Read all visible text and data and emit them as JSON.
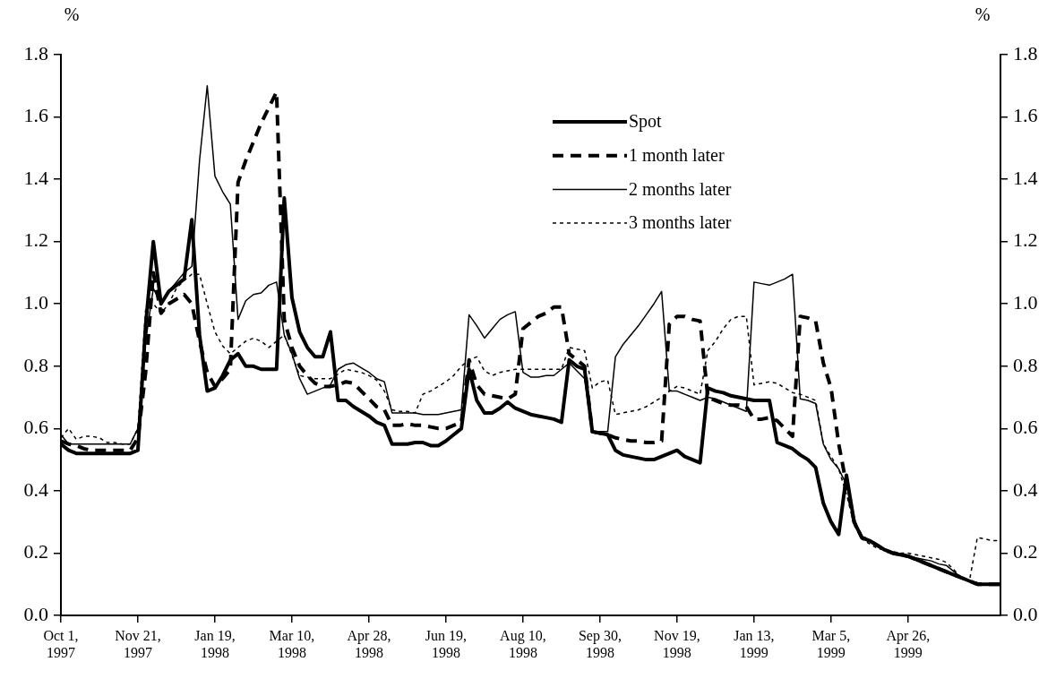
{
  "chart_data": {
    "type": "line",
    "ylabel": "%",
    "y2label": "%",
    "categories": [
      "Oct 1, 1997",
      null,
      null,
      null,
      null,
      null,
      null,
      null,
      null,
      null,
      "Nov 21, 1997",
      null,
      null,
      null,
      null,
      null,
      null,
      null,
      null,
      null,
      "Jan 19, 1998",
      null,
      null,
      null,
      null,
      null,
      null,
      null,
      null,
      null,
      "Mar 10, 1998",
      null,
      null,
      null,
      null,
      null,
      null,
      null,
      null,
      null,
      "Apr 28, 1998",
      null,
      null,
      null,
      null,
      null,
      null,
      null,
      null,
      null,
      "Jun 19, 1998",
      null,
      null,
      null,
      null,
      null,
      null,
      null,
      null,
      null,
      "Aug 10, 1998",
      null,
      null,
      null,
      null,
      null,
      null,
      null,
      null,
      null,
      "Sep 30, 1998",
      null,
      null,
      null,
      null,
      null,
      null,
      null,
      null,
      null,
      "Nov 19, 1998",
      null,
      null,
      null,
      null,
      null,
      null,
      null,
      null,
      null,
      "Jan 13, 1999",
      null,
      null,
      null,
      null,
      null,
      null,
      null,
      null,
      null,
      "Mar 5, 1999",
      null,
      null,
      null,
      null,
      null,
      null,
      null,
      null,
      null,
      "Apr 26, 1999",
      null,
      null,
      null,
      null,
      null,
      null,
      null,
      null,
      null,
      null,
      null,
      null
    ],
    "ylim": [
      0,
      1.8
    ],
    "yticks": [
      {
        "value": 0,
        "label": "0.0"
      },
      {
        "value": 0.2,
        "label": "0.2"
      },
      {
        "value": 0.4,
        "label": "0.4"
      },
      {
        "value": 0.6,
        "label": "0.6"
      },
      {
        "value": 0.8,
        "label": "0.8"
      },
      {
        "value": 1,
        "label": "1.0"
      },
      {
        "value": 1.2,
        "label": "1.2"
      },
      {
        "value": 1.4,
        "label": "1.4"
      },
      {
        "value": 1.6,
        "label": "1.6"
      },
      {
        "value": 1.8,
        "label": "1.8"
      }
    ],
    "y2lim": [
      0,
      1.8
    ],
    "y2ticks": [
      {
        "value": 0,
        "label": "0.0"
      },
      {
        "value": 0.2,
        "label": "0.2"
      },
      {
        "value": 0.4,
        "label": "0.4"
      },
      {
        "value": 0.6,
        "label": "0.6"
      },
      {
        "value": 0.8,
        "label": "0.8"
      },
      {
        "value": 1,
        "label": "1.0"
      },
      {
        "value": 1.2,
        "label": "1.2"
      },
      {
        "value": 1.4,
        "label": "1.4"
      },
      {
        "value": 1.6,
        "label": "1.6"
      },
      {
        "value": 1.8,
        "label": "1.8"
      }
    ],
    "grid": false,
    "legend": "top right",
    "series": [
      {
        "name": "Spot",
        "color": "#000000",
        "line_style": "solid",
        "values": [
          0.55,
          0.53,
          0.52,
          0.52,
          0.52,
          0.52,
          0.52,
          0.52,
          0.52,
          0.52,
          0.53,
          0.93,
          1.2,
          1.0,
          1.04,
          1.06,
          1.08,
          1.27,
          0.9,
          0.72,
          0.73,
          0.77,
          0.82,
          0.84,
          0.8,
          0.8,
          0.79,
          0.79,
          0.79,
          1.34,
          1.02,
          0.91,
          0.86,
          0.83,
          0.83,
          0.91,
          0.69,
          0.69,
          0.67,
          0.655,
          0.64,
          0.62,
          0.61,
          0.55,
          0.55,
          0.55,
          0.555,
          0.555,
          0.545,
          0.545,
          0.56,
          0.58,
          0.6,
          0.79,
          0.69,
          0.65,
          0.65,
          0.665,
          0.685,
          0.665,
          0.655,
          0.645,
          0.64,
          0.635,
          0.63,
          0.62,
          0.82,
          0.8,
          0.79,
          0.59,
          0.585,
          0.58,
          0.53,
          0.515,
          0.51,
          0.505,
          0.5,
          0.5,
          0.51,
          0.52,
          0.53,
          0.51,
          0.5,
          0.49,
          0.73,
          0.72,
          0.715,
          0.705,
          0.7,
          0.695,
          0.69,
          0.69,
          0.69,
          0.555,
          0.545,
          0.535,
          0.515,
          0.5,
          0.475,
          0.36,
          0.3,
          0.26,
          0.45,
          0.3,
          0.25,
          0.24,
          0.225,
          0.21,
          0.2,
          0.195,
          0.19,
          0.18,
          0.17,
          0.16,
          0.15,
          0.14,
          0.13,
          0.12,
          0.11,
          0.1,
          0.1,
          0.1,
          0.1
        ]
      },
      {
        "name": "1 month later",
        "color": "#000000",
        "line_style": "dashed",
        "values": [
          0.56,
          0.55,
          0.545,
          0.535,
          0.53,
          0.53,
          0.53,
          0.53,
          0.53,
          0.53,
          0.57,
          0.78,
          1.1,
          0.97,
          1.0,
          1.015,
          1.03,
          1.0,
          0.88,
          0.78,
          0.735,
          0.76,
          0.79,
          1.39,
          1.46,
          1.52,
          1.58,
          1.63,
          1.68,
          0.95,
          0.86,
          0.8,
          0.77,
          0.745,
          0.735,
          0.735,
          0.74,
          0.75,
          0.745,
          0.72,
          0.695,
          0.67,
          0.66,
          0.61,
          0.61,
          0.615,
          0.61,
          0.61,
          0.605,
          0.6,
          0.6,
          0.61,
          0.62,
          0.82,
          0.74,
          0.71,
          0.705,
          0.7,
          0.695,
          0.71,
          0.92,
          0.94,
          0.96,
          0.97,
          0.99,
          0.99,
          0.84,
          0.82,
          0.8,
          0.59,
          0.585,
          0.58,
          0.57,
          0.565,
          0.56,
          0.56,
          0.555,
          0.555,
          0.56,
          0.935,
          0.96,
          0.96,
          0.95,
          0.945,
          0.7,
          0.69,
          0.68,
          0.675,
          0.675,
          0.67,
          0.63,
          0.63,
          0.635,
          0.625,
          0.6,
          0.575,
          0.96,
          0.955,
          0.945,
          0.81,
          0.73,
          0.55,
          0.42,
          0.3,
          0.25,
          0.24,
          0.225,
          0.21,
          0.2,
          0.195,
          0.19,
          0.18,
          0.17,
          0.16,
          0.15,
          0.14,
          0.13,
          0.12,
          0.11,
          0.1,
          0.1,
          0.1,
          0.1
        ]
      },
      {
        "name": "2 months later",
        "color": "#000000",
        "line_style": "solid",
        "values": [
          0.58,
          0.55,
          0.55,
          0.55,
          0.55,
          0.55,
          0.55,
          0.55,
          0.55,
          0.55,
          0.6,
          0.88,
          1.05,
          1.0,
          1.04,
          1.07,
          1.1,
          1.12,
          1.46,
          1.7,
          1.41,
          1.36,
          1.32,
          0.95,
          1.01,
          1.03,
          1.035,
          1.06,
          1.07,
          0.9,
          0.84,
          0.76,
          0.71,
          0.72,
          0.73,
          0.74,
          0.79,
          0.805,
          0.81,
          0.795,
          0.78,
          0.76,
          0.75,
          0.65,
          0.65,
          0.65,
          0.65,
          0.645,
          0.645,
          0.645,
          0.65,
          0.655,
          0.66,
          0.965,
          0.93,
          0.89,
          0.92,
          0.95,
          0.965,
          0.975,
          0.78,
          0.765,
          0.765,
          0.77,
          0.77,
          0.79,
          0.81,
          0.785,
          0.76,
          0.59,
          0.59,
          0.59,
          0.83,
          0.87,
          0.9,
          0.93,
          0.965,
          1.0,
          1.04,
          0.72,
          0.72,
          0.71,
          0.7,
          0.69,
          0.7,
          0.695,
          0.685,
          0.675,
          0.665,
          0.655,
          1.07,
          1.065,
          1.06,
          1.07,
          1.08,
          1.095,
          0.695,
          0.69,
          0.68,
          0.55,
          0.5,
          0.47,
          0.42,
          0.3,
          0.25,
          0.24,
          0.225,
          0.21,
          0.2,
          0.195,
          0.19,
          0.185,
          0.18,
          0.175,
          0.165,
          0.16,
          0.14,
          0.12,
          0.11,
          0.105,
          0.1,
          0.1,
          0.1
        ]
      },
      {
        "name": "3 months later",
        "color": "#000000",
        "line_style": "dotted",
        "values": [
          0.57,
          0.6,
          0.565,
          0.575,
          0.575,
          0.57,
          0.555,
          0.555,
          0.55,
          0.55,
          0.6,
          0.98,
          1.0,
          0.97,
          1.0,
          1.05,
          1.075,
          1.095,
          1.095,
          1.0,
          0.91,
          0.865,
          0.84,
          0.86,
          0.88,
          0.89,
          0.88,
          0.86,
          0.88,
          0.9,
          0.835,
          0.77,
          0.765,
          0.76,
          0.76,
          0.76,
          0.775,
          0.79,
          0.785,
          0.78,
          0.77,
          0.755,
          0.72,
          0.66,
          0.655,
          0.655,
          0.65,
          0.71,
          0.72,
          0.735,
          0.75,
          0.77,
          0.8,
          0.82,
          0.83,
          0.785,
          0.77,
          0.78,
          0.785,
          0.79,
          0.79,
          0.79,
          0.79,
          0.79,
          0.79,
          0.79,
          0.86,
          0.855,
          0.85,
          0.73,
          0.75,
          0.755,
          0.645,
          0.65,
          0.655,
          0.66,
          0.67,
          0.685,
          0.7,
          0.72,
          0.735,
          0.73,
          0.72,
          0.71,
          0.85,
          0.88,
          0.92,
          0.95,
          0.96,
          0.96,
          0.74,
          0.745,
          0.75,
          0.745,
          0.73,
          0.715,
          0.71,
          0.7,
          0.69,
          0.55,
          0.51,
          0.47,
          0.39,
          0.29,
          0.245,
          0.23,
          0.215,
          0.21,
          0.205,
          0.2,
          0.2,
          0.195,
          0.19,
          0.185,
          0.18,
          0.17,
          0.145,
          0.12,
          0.115,
          0.25,
          0.245,
          0.24,
          0.24
        ]
      }
    ]
  }
}
